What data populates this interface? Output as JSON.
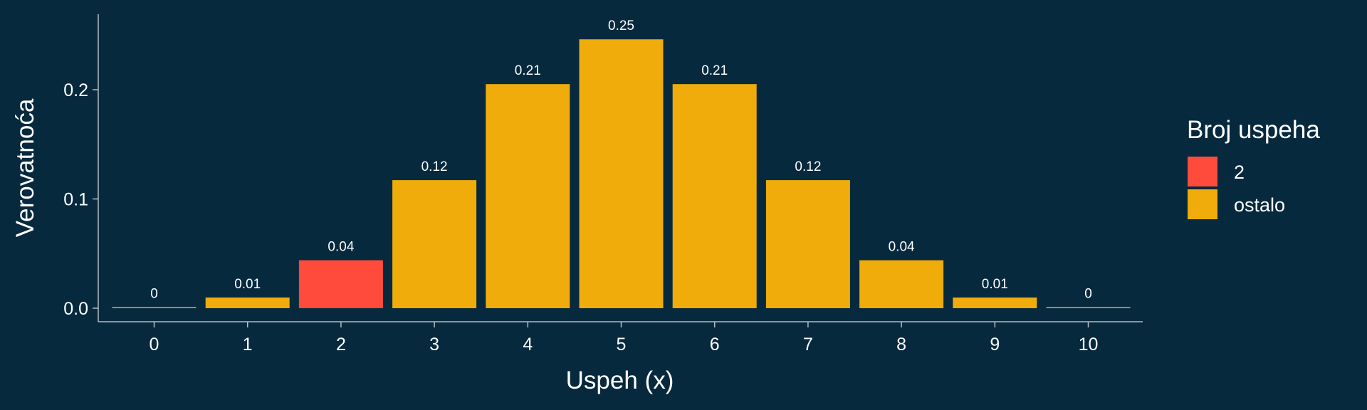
{
  "chart_data": {
    "type": "bar",
    "categories": [
      "0",
      "1",
      "2",
      "3",
      "4",
      "5",
      "6",
      "7",
      "8",
      "9",
      "10"
    ],
    "values": [
      0.001,
      0.0098,
      0.0439,
      0.1172,
      0.2051,
      0.2461,
      0.2051,
      0.1172,
      0.0439,
      0.0098,
      0.001
    ],
    "data_labels": [
      "0",
      "0.01",
      "0.04",
      "0.12",
      "0.21",
      "0.25",
      "0.21",
      "0.12",
      "0.04",
      "0.01",
      "0"
    ],
    "groups": [
      "ostalo",
      "ostalo",
      "2",
      "ostalo",
      "ostalo",
      "ostalo",
      "ostalo",
      "ostalo",
      "ostalo",
      "ostalo",
      "ostalo"
    ],
    "xlabel": "Uspeh (x)",
    "ylabel": "Verovatnoća",
    "ylim": [
      0,
      0.27
    ],
    "yticks": [
      0.0,
      0.1,
      0.2
    ],
    "ytick_labels": [
      "0.0",
      "0.1",
      "0.2"
    ],
    "grid": false,
    "legend": {
      "title": "Broj uspeha",
      "position": "right",
      "entries": [
        {
          "label": "2",
          "color": "#ff4b3c"
        },
        {
          "label": "ostalo",
          "color": "#efac0a"
        }
      ]
    },
    "colors": {
      "background": "#06293e",
      "axis": "#b8bcc0",
      "text": "#ffffff"
    }
  }
}
